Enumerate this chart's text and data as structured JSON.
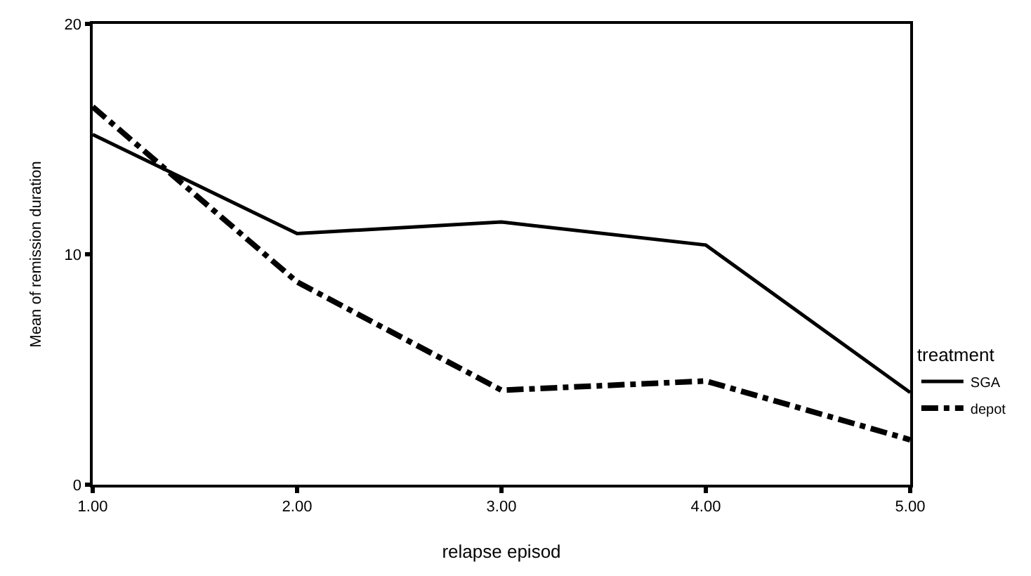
{
  "chart_data": {
    "type": "line",
    "xlabel": "relapse episod",
    "ylabel": "Mean of remission duration",
    "legend_title": "treatment",
    "x": [
      1,
      2,
      3,
      4,
      5
    ],
    "series": [
      {
        "name": "SGA",
        "color": "#000000",
        "line_style": "solid",
        "values": [
          15.2,
          10.9,
          11.4,
          10.4,
          4.0
        ]
      },
      {
        "name": "depot",
        "color": "#000000",
        "line_style": "dashdot",
        "values": [
          16.4,
          8.8,
          4.1,
          4.5,
          1.95
        ]
      }
    ],
    "xlim": [
      1,
      5
    ],
    "xticks": [
      {
        "value": 1,
        "label": "1.00"
      },
      {
        "value": 2,
        "label": "2.00"
      },
      {
        "value": 3,
        "label": "3.00"
      },
      {
        "value": 4,
        "label": "4.00"
      },
      {
        "value": 5,
        "label": "5.00"
      }
    ],
    "ylim": [
      0,
      20
    ],
    "yticks": [
      0,
      10,
      20
    ],
    "legend": "right",
    "marker": "none"
  }
}
